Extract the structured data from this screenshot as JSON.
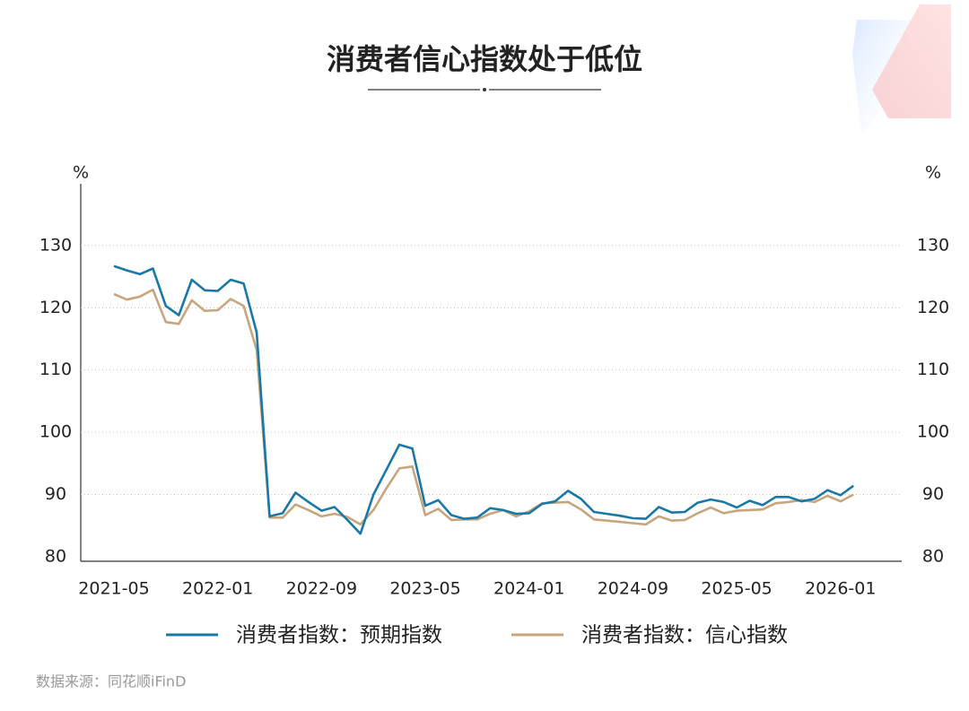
{
  "chart_data": {
    "type": "line",
    "title": "消费者信心指数处于低位",
    "y_label": "%",
    "source": "数据来源：同花顺iFinD",
    "x": [
      "2021-05",
      "2021-06",
      "2021-07",
      "2021-08",
      "2021-09",
      "2021-10",
      "2021-11",
      "2021-12",
      "2022-01",
      "2022-02",
      "2022-03",
      "2022-04",
      "2022-05",
      "2022-06",
      "2022-07",
      "2022-08",
      "2022-09",
      "2022-10",
      "2022-11",
      "2022-12",
      "2023-01",
      "2023-02",
      "2023-03",
      "2023-04",
      "2023-05",
      "2023-06",
      "2023-07",
      "2023-08",
      "2023-09",
      "2023-10",
      "2023-11",
      "2023-12",
      "2024-01",
      "2024-02",
      "2024-03",
      "2024-04",
      "2024-05",
      "2024-06",
      "2024-07",
      "2024-08",
      "2024-09",
      "2024-10",
      "2024-11",
      "2024-12",
      "2025-01",
      "2025-02",
      "2025-03",
      "2025-04",
      "2025-05",
      "2025-06",
      "2025-07",
      "2025-08",
      "2025-09",
      "2025-10",
      "2025-11",
      "2025-12",
      "2026-01",
      "2026-02"
    ],
    "xticks": [
      "2021-05",
      "2022-01",
      "2022-09",
      "2023-05",
      "2024-01",
      "2024-09",
      "2025-05",
      "2026-01"
    ],
    "ylim": [
      80,
      140
    ],
    "yticks": [
      80,
      90,
      100,
      110,
      120,
      130
    ],
    "grid": true,
    "legend": "bottom",
    "series": [
      {
        "name": "消费者指数：预期指数",
        "color": "#1a78a8",
        "values": [
          126.7,
          126.0,
          125.4,
          126.3,
          120.3,
          118.8,
          124.5,
          122.8,
          122.7,
          124.5,
          123.9,
          116.0,
          86.5,
          87.0,
          90.3,
          88.8,
          87.4,
          88.0,
          85.9,
          83.7,
          90.0,
          94.0,
          98.0,
          97.4,
          88.2,
          89.1,
          86.7,
          86.1,
          86.3,
          87.8,
          87.5,
          86.9,
          87.0,
          88.5,
          88.9,
          90.6,
          89.3,
          87.2,
          86.9,
          86.6,
          86.2,
          86.1,
          88.0,
          87.1,
          87.2,
          88.7,
          89.2,
          88.8,
          87.9,
          89.0,
          88.3,
          89.6,
          89.6,
          88.9,
          89.3,
          90.7,
          89.9,
          91.4
        ]
      },
      {
        "name": "消费者指数：信心指数",
        "color": "#c8a67d",
        "values": [
          122.2,
          121.3,
          121.8,
          122.9,
          117.7,
          117.4,
          121.2,
          119.5,
          119.6,
          121.4,
          120.3,
          113.2,
          86.3,
          86.3,
          88.4,
          87.5,
          86.5,
          86.9,
          86.4,
          85.2,
          87.5,
          91.0,
          94.2,
          94.5,
          86.7,
          87.7,
          85.9,
          86.0,
          86.0,
          86.9,
          87.5,
          86.5,
          87.3,
          88.6,
          88.7,
          88.8,
          87.6,
          86.0,
          85.8,
          85.6,
          85.4,
          85.2,
          86.5,
          85.8,
          85.9,
          87.0,
          87.9,
          87.0,
          87.4,
          87.5,
          87.6,
          88.6,
          88.8,
          89.1,
          88.8,
          89.8,
          88.9,
          90.0
        ]
      }
    ]
  }
}
